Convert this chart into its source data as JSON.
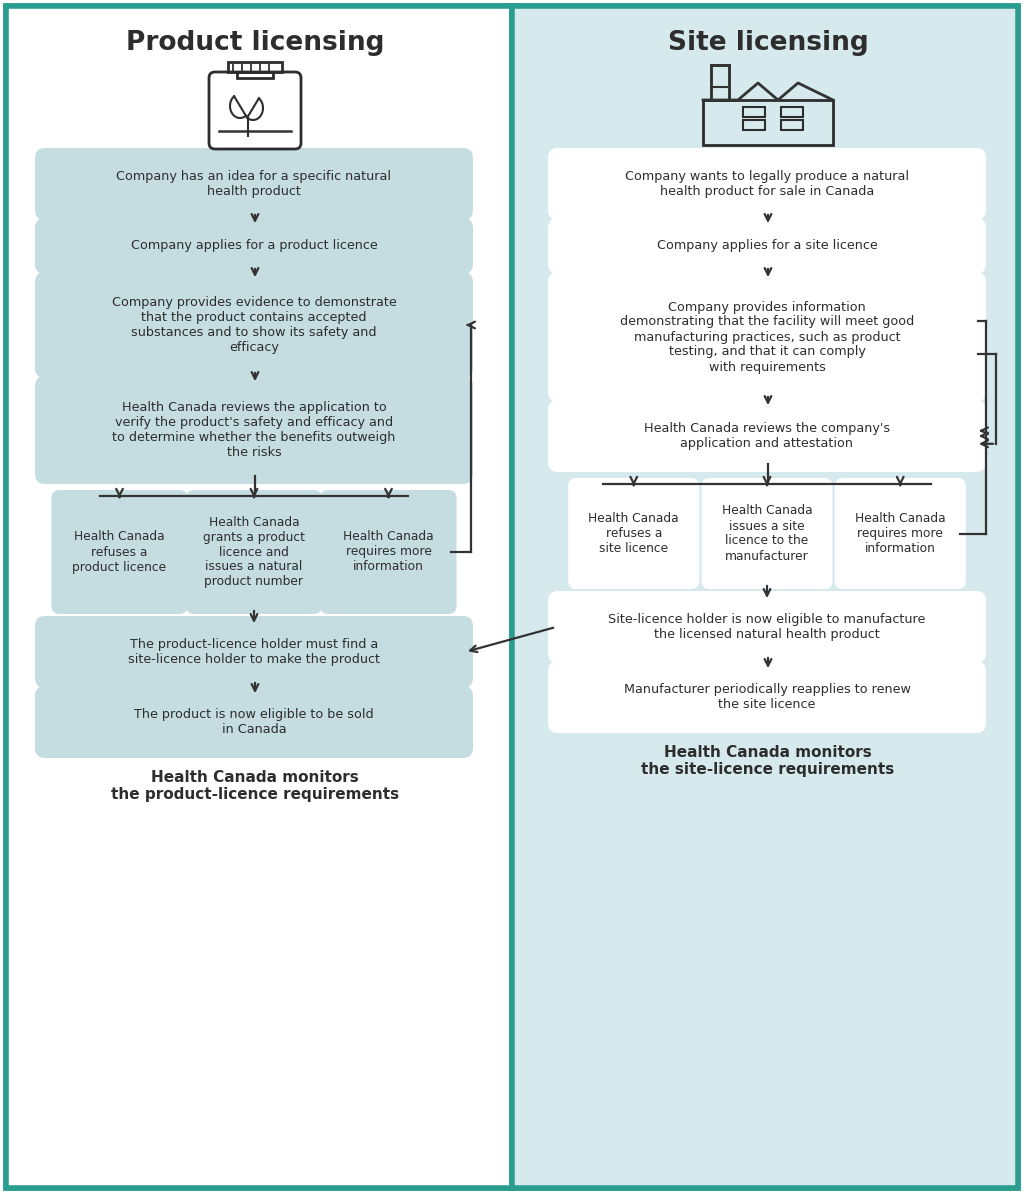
{
  "bg_left": "#ffffff",
  "bg_right": "#d6eaed",
  "border_color": "#2a9d8f",
  "box_color_left": "#c5dde1",
  "box_color_right": "#ffffff",
  "box_color_small_right": "#d6eaed",
  "text_color": "#2d2d2d",
  "arrow_color": "#333333",
  "title_left": "Product licensing",
  "title_right": "Site licensing",
  "left_boxes": [
    "Company has an idea for a specific natural\nhealth product",
    "Company applies for a product licence",
    "Company provides evidence to demonstrate\nthat the product contains accepted\nsubstances and to show its safety and\nefficacy",
    "Health Canada reviews the application to\nverify the product's safety and efficacy and\nto determine whether the benefits outweigh\nthe risks"
  ],
  "left_small_boxes": [
    "Health Canada\nrefuses a\nproduct licence",
    "Health Canada\ngrants a product\nlicence and\nissues a natural\nproduct number",
    "Health Canada\nrequires more\ninformation"
  ],
  "left_bottom_boxes": [
    "The product-licence holder must find a\nsite-licence holder to make the product",
    "The product is now eligible to be sold\nin Canada"
  ],
  "left_footer": "Health Canada monitors\nthe product-licence requirements",
  "right_boxes": [
    "Company wants to legally produce a natural\nhealth product for sale in Canada",
    "Company applies for a site licence",
    "Company provides information\ndemonstrating that the facility will meet good\nmanufacturing practices, such as product\ntesting, and that it can comply\nwith requirements",
    "Health Canada reviews the company's\napplication and attestation"
  ],
  "right_small_boxes": [
    "Health Canada\nrefuses a\nsite licence",
    "Health Canada\nissues a site\nlicence to the\nmanufacturer",
    "Health Canada\nrequires more\ninformation"
  ],
  "right_bottom_boxes": [
    "Site-licence holder is now eligible to manufacture\nthe licensed natural health product",
    "Manufacturer periodically reapplies to renew\nthe site licence"
  ],
  "right_footer": "Health Canada monitors\nthe site-licence requirements"
}
